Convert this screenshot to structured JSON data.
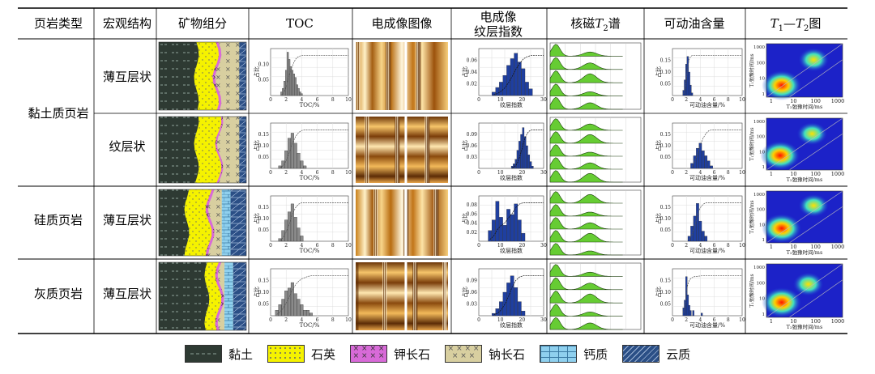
{
  "header": {
    "col1": "页岩类型",
    "col2": "宏观结构",
    "col3": "矿物组分",
    "col4": "TOC",
    "col5": "电成像图像",
    "col6_line1": "电成像",
    "col6_line2": "纹层指数",
    "col7_prefix": "核磁",
    "col7_sym": "T",
    "col7_sub": "2",
    "col7_suffix": "谱",
    "col8": "可动油含量",
    "col9_t1": "T",
    "col9_sub1": "1",
    "col9_dash": "—",
    "col9_t2": "T",
    "col9_sub2": "2",
    "col9_suffix": "图"
  },
  "shale_types": [
    "黏土质页岩",
    "硅质页岩",
    "灰质页岩"
  ],
  "rows": [
    {
      "structure": "薄互层状"
    },
    {
      "structure": "纹层状"
    },
    {
      "structure": "薄互层状"
    },
    {
      "structure": "薄互层状"
    }
  ],
  "axis_labels": {
    "toc_x": "TOC/%",
    "toc_y": "占比",
    "lam_x": "纹层指数",
    "lam_y": "占比",
    "oil_x": "可动油含量/%",
    "oil_y": "占比",
    "t1t2_x": "T₂弛豫时间/ms",
    "t1t2_y": "T₁弛豫时间/ms"
  },
  "ticks": {
    "toc_x": [
      "0",
      "2",
      "4",
      "6",
      "8",
      "10"
    ],
    "toc_y_rows": [
      [
        "0.10",
        "0.05"
      ],
      [
        "0.15",
        "0.10",
        "0.05"
      ],
      [
        "0.15",
        "0.10",
        "0.05"
      ],
      [
        "0.15",
        "0.10",
        "0.05"
      ]
    ],
    "lam_x": [
      "0",
      "10",
      "20",
      "30"
    ],
    "lam_y_rows": [
      [
        "0.06",
        "0.04",
        "0.02"
      ],
      [
        "0.09",
        "0.06",
        "0.03"
      ],
      [
        "0.08",
        "0.06",
        "0.04",
        "0.02"
      ],
      [
        "0.09",
        "0.06",
        "0.03"
      ]
    ],
    "oil_x": [
      "0",
      "2",
      "4",
      "6",
      "8",
      "10"
    ],
    "oil_y_rows": [
      [
        "0.15",
        "0.10",
        "0.05"
      ],
      [
        "0.15",
        "0.10",
        "0.05"
      ],
      [
        "0.15",
        "0.10",
        "0.05"
      ],
      [
        "0.15",
        "0.10",
        "0.05"
      ]
    ],
    "t1t2_x": [
      "1",
      "10",
      "100",
      "1000"
    ],
    "t1t2_y": [
      "1000",
      "100",
      "10",
      "1"
    ]
  },
  "chart_data": [
    {
      "type": "bar",
      "title": "TOC 黏土质页岩 薄互层状",
      "xlabel": "TOC/%",
      "ylabel": "占比",
      "xlim": [
        0,
        10
      ],
      "ylim": [
        0,
        0.13
      ],
      "x": [
        1.4,
        1.6,
        1.8,
        2.0,
        2.2,
        2.4,
        2.6,
        2.8,
        3.0,
        3.2,
        3.4,
        3.6,
        3.8,
        4.0
      ],
      "values": [
        0.01,
        0.02,
        0.04,
        0.07,
        0.12,
        0.1,
        0.08,
        0.07,
        0.06,
        0.05,
        0.03,
        0.02,
        0.01,
        0.005
      ]
    },
    {
      "type": "bar",
      "title": "TOC 黏土质页岩 纹层状",
      "xlabel": "TOC/%",
      "ylabel": "占比",
      "xlim": [
        0,
        10
      ],
      "ylim": [
        0,
        0.18
      ],
      "x": [
        1.2,
        1.6,
        2.0,
        2.4,
        2.8,
        3.2,
        3.6,
        4.0,
        4.4
      ],
      "values": [
        0.01,
        0.03,
        0.07,
        0.12,
        0.14,
        0.1,
        0.06,
        0.03,
        0.01
      ]
    },
    {
      "type": "bar",
      "title": "TOC 硅质页岩 薄互层状",
      "xlabel": "TOC/%",
      "ylabel": "占比",
      "xlim": [
        0,
        10
      ],
      "ylim": [
        0,
        0.17
      ],
      "x": [
        1.2,
        1.6,
        2.0,
        2.4,
        2.8,
        3.2,
        3.6,
        4.0
      ],
      "values": [
        0.01,
        0.04,
        0.08,
        0.11,
        0.14,
        0.09,
        0.05,
        0.02
      ]
    },
    {
      "type": "bar",
      "title": "TOC 灰质页岩 薄互层状",
      "xlabel": "TOC/%",
      "ylabel": "占比",
      "xlim": [
        0,
        10
      ],
      "ylim": [
        0,
        0.17
      ],
      "x": [
        0.8,
        1.2,
        1.6,
        2.0,
        2.4,
        2.8,
        3.2,
        3.6,
        4.0,
        4.4,
        4.8,
        5.2
      ],
      "values": [
        0.02,
        0.04,
        0.06,
        0.09,
        0.1,
        0.12,
        0.08,
        0.06,
        0.04,
        0.02,
        0.02,
        0.01
      ]
    },
    {
      "type": "bar",
      "title": "纹层指数 黏土质页岩 薄互层状",
      "xlabel": "纹层指数",
      "ylabel": "占比",
      "xlim": [
        0,
        35
      ],
      "ylim": [
        0,
        0.07
      ],
      "x": [
        8,
        10,
        12,
        14,
        16,
        18,
        20,
        22,
        24,
        26,
        28
      ],
      "values": [
        0.005,
        0.012,
        0.02,
        0.03,
        0.045,
        0.055,
        0.063,
        0.05,
        0.04,
        0.02,
        0.01
      ]
    },
    {
      "type": "bar",
      "title": "纹层指数 黏土质页岩 纹层状",
      "xlabel": "纹层指数",
      "ylabel": "占比",
      "xlim": [
        0,
        35
      ],
      "ylim": [
        0,
        0.1
      ],
      "x": [
        18,
        19,
        20,
        21,
        22,
        23,
        24,
        25,
        26,
        27,
        28,
        29
      ],
      "values": [
        0.005,
        0.01,
        0.02,
        0.04,
        0.06,
        0.075,
        0.09,
        0.07,
        0.05,
        0.03,
        0.015,
        0.005
      ]
    },
    {
      "type": "bar",
      "title": "纹层指数 硅质页岩 薄互层状",
      "xlabel": "纹层指数",
      "ylabel": "占比",
      "xlim": [
        0,
        35
      ],
      "ylim": [
        0,
        0.085
      ],
      "x": [
        6,
        8,
        10,
        12,
        14,
        16,
        18,
        20,
        22,
        24
      ],
      "values": [
        0.02,
        0.04,
        0.075,
        0.045,
        0.03,
        0.06,
        0.05,
        0.07,
        0.04,
        0.015
      ]
    },
    {
      "type": "bar",
      "title": "纹层指数 灰质页岩 薄互层状",
      "xlabel": "纹层指数",
      "ylabel": "占比",
      "xlim": [
        0,
        35
      ],
      "ylim": [
        0,
        0.1
      ],
      "x": [
        8,
        10,
        12,
        14,
        16,
        18,
        20,
        22,
        24
      ],
      "values": [
        0.005,
        0.015,
        0.03,
        0.05,
        0.07,
        0.085,
        0.06,
        0.03,
        0.01
      ]
    },
    {
      "type": "bar",
      "title": "可动油含量 黏土质页岩 薄互层状",
      "xlabel": "可动油含量/%",
      "ylabel": "占比",
      "xlim": [
        0,
        10
      ],
      "ylim": [
        0,
        0.18
      ],
      "x": [
        1.6,
        1.8,
        2.0,
        2.2,
        2.4,
        2.6,
        2.8
      ],
      "values": [
        0.02,
        0.06,
        0.12,
        0.15,
        0.09,
        0.04,
        0.01
      ]
    },
    {
      "type": "bar",
      "title": "可动油含量 黏土质页岩 纹层状",
      "xlabel": "可动油含量/%",
      "ylabel": "占比",
      "xlim": [
        0,
        10
      ],
      "ylim": [
        0,
        0.18
      ],
      "x": [
        2.8,
        3.2,
        3.6,
        4.0,
        4.4,
        4.8,
        5.2,
        5.6
      ],
      "values": [
        0.02,
        0.05,
        0.08,
        0.1,
        0.07,
        0.05,
        0.03,
        0.01
      ]
    },
    {
      "type": "bar",
      "title": "可动油含量 硅质页岩 薄互层状",
      "xlabel": "可动油含量/%",
      "ylabel": "占比",
      "xlim": [
        0,
        10
      ],
      "ylim": [
        0,
        0.18
      ],
      "x": [
        2.4,
        2.8,
        3.2,
        3.6,
        4.0,
        4.4,
        4.8
      ],
      "values": [
        0.02,
        0.06,
        0.1,
        0.15,
        0.08,
        0.04,
        0.02
      ]
    },
    {
      "type": "bar",
      "title": "可动油含量 灰质页岩 薄互层状",
      "xlabel": "可动油含量/%",
      "ylabel": "占比",
      "xlim": [
        0,
        10
      ],
      "ylim": [
        0,
        0.18
      ],
      "x": [
        1.6,
        1.8,
        2.0,
        2.2,
        2.4,
        2.6,
        3.0,
        4.2
      ],
      "values": [
        0.03,
        0.06,
        0.15,
        0.08,
        0.04,
        0.02,
        0.02,
        0.01
      ]
    }
  ],
  "legend": [
    {
      "label": "黏土",
      "pattern": "clay"
    },
    {
      "label": "石英",
      "pattern": "quartz"
    },
    {
      "label": "钾长石",
      "pattern": "kfeldspar"
    },
    {
      "label": "钠长石",
      "pattern": "albite"
    },
    {
      "label": "钙质",
      "pattern": "calcite"
    },
    {
      "label": "云质",
      "pattern": "dolomite"
    }
  ],
  "colors": {
    "clay": "#2e3a33",
    "quartz": "#f5f200",
    "kfeldspar": "#d86ad8",
    "albite": "#d8cfa0",
    "calcite": "#8fd0ee",
    "dolomite": "#2b4f86",
    "toc_bar": "#8a8a8a",
    "lam_bar": "#1f3fa0",
    "oil_bar": "#1f3fa0",
    "nmr_fill": "#66cc33"
  }
}
